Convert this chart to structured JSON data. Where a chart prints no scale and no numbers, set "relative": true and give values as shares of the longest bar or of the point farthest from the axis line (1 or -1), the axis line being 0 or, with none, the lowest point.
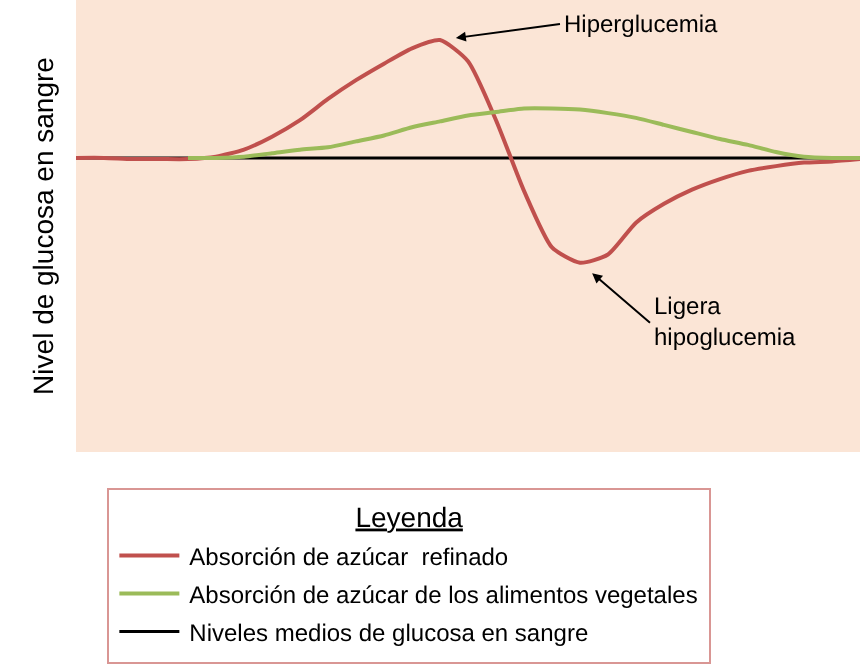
{
  "chart_data": {
    "type": "line",
    "relative": true,
    "ylabel": "Nivel de glucosa en sangre",
    "legend_title": "Leyenda",
    "legend": "bottom",
    "grid": false,
    "marker": "none",
    "line_style": "solid",
    "categories": [
      null,
      null,
      null,
      null,
      null,
      null,
      null,
      null,
      null,
      null,
      null,
      null,
      null,
      null,
      null,
      null,
      null,
      null,
      null,
      null,
      null,
      null,
      null,
      null,
      null,
      null,
      null,
      null,
      null
    ],
    "series": [
      {
        "name": "Absorción de azúcar  refinado",
        "color": "#c0504d",
        "values": [
          0,
          0,
          -0.01,
          -0.01,
          -0.01,
          0.01,
          0.07,
          0.18,
          0.32,
          0.5,
          0.66,
          0.8,
          0.93,
          1,
          0.82,
          0.32,
          -0.28,
          -0.76,
          -0.89,
          -0.82,
          -0.55,
          -0.39,
          -0.27,
          -0.18,
          -0.11,
          -0.07,
          -0.04,
          -0.03,
          -0.01
        ]
      },
      {
        "name": "Absorción de azúcar de los alimentos vegetales",
        "color": "#9bbb59",
        "values": [
          null,
          null,
          null,
          null,
          0,
          0,
          0.01,
          0.04,
          0.07,
          0.09,
          0.14,
          0.19,
          0.26,
          0.31,
          0.36,
          0.39,
          0.42,
          0.42,
          0.41,
          0.38,
          0.34,
          0.28,
          0.22,
          0.16,
          0.11,
          0.05,
          0.01,
          0,
          0
        ]
      }
    ],
    "ref_lines": [
      {
        "axis": "y",
        "value": 0,
        "label": "Niveles medios de glucosa en sangre",
        "color": "#000000",
        "line_style": "solid"
      }
    ],
    "annotations": [
      "Hiperglucemia",
      "Ligera hipoglucemia"
    ]
  }
}
